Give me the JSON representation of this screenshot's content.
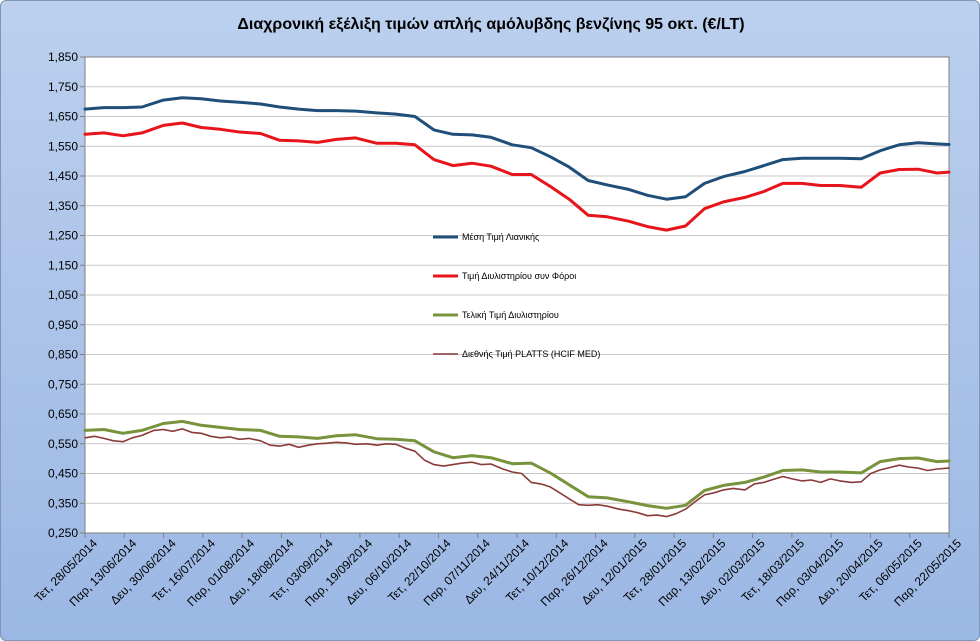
{
  "chart_data": {
    "type": "line",
    "title": "Διαχρονική εξέλιξη τιμών απλής αμόλυβδης βενζίνης 95 οκτ. (€/LT)",
    "ylim": [
      0.25,
      1.85
    ],
    "yticks": [
      "0,250",
      "0,350",
      "0,450",
      "0,550",
      "0,650",
      "0,750",
      "0,850",
      "0,950",
      "1,050",
      "1,150",
      "1,250",
      "1,350",
      "1,450",
      "1,550",
      "1,650",
      "1,750",
      "1,850"
    ],
    "grid": true,
    "legend_placement": "center",
    "x_ticks": [
      "Τετ, 28/05/2014",
      "Παρ, 13/06/2014",
      "Δευ, 30/06/2014",
      "Τετ, 16/07/2014",
      "Παρ, 01/08/2014",
      "Δευ, 18/08/2014",
      "Τετ, 03/09/2014",
      "Παρ, 19/09/2014",
      "Δευ, 06/10/2014",
      "Τετ, 22/10/2014",
      "Παρ, 07/11/2014",
      "Δευ, 24/11/2014",
      "Τετ, 10/12/2014",
      "Παρ, 26/12/2014",
      "Δευ, 12/01/2015",
      "Τετ, 28/01/2015",
      "Παρ, 13/02/2015",
      "Δευ, 02/03/2015",
      "Τετ, 18/03/2015",
      "Παρ, 03/04/2015",
      "Δευ, 20/04/2015",
      "Τετ, 06/05/2015",
      "Παρ, 22/05/2015"
    ],
    "x_domain": [
      "28/05/2014",
      "27/05/2015"
    ],
    "series": [
      {
        "name": "Μέση Τιμή Λιανικής",
        "color": "#1f4e79",
        "width": 3,
        "points": [
          [
            "28/05/2014",
            1.675
          ],
          [
            "05/06/2014",
            1.68
          ],
          [
            "13/06/2014",
            1.68
          ],
          [
            "21/06/2014",
            1.682
          ],
          [
            "30/06/2014",
            1.705
          ],
          [
            "08/07/2014",
            1.713
          ],
          [
            "16/07/2014",
            1.71
          ],
          [
            "24/07/2014",
            1.702
          ],
          [
            "01/08/2014",
            1.698
          ],
          [
            "10/08/2014",
            1.692
          ],
          [
            "18/08/2014",
            1.682
          ],
          [
            "26/08/2014",
            1.675
          ],
          [
            "03/09/2014",
            1.67
          ],
          [
            "11/09/2014",
            1.67
          ],
          [
            "19/09/2014",
            1.668
          ],
          [
            "28/09/2014",
            1.662
          ],
          [
            "06/10/2014",
            1.658
          ],
          [
            "14/10/2014",
            1.65
          ],
          [
            "22/10/2014",
            1.605
          ],
          [
            "30/10/2014",
            1.59
          ],
          [
            "07/11/2014",
            1.588
          ],
          [
            "15/11/2014",
            1.58
          ],
          [
            "24/11/2014",
            1.555
          ],
          [
            "02/12/2014",
            1.545
          ],
          [
            "10/12/2014",
            1.515
          ],
          [
            "18/12/2014",
            1.48
          ],
          [
            "26/12/2014",
            1.435
          ],
          [
            "03/01/2015",
            1.42
          ],
          [
            "12/01/2015",
            1.405
          ],
          [
            "20/01/2015",
            1.385
          ],
          [
            "28/01/2015",
            1.372
          ],
          [
            "05/02/2015",
            1.38
          ],
          [
            "13/02/2015",
            1.425
          ],
          [
            "21/02/2015",
            1.448
          ],
          [
            "02/03/2015",
            1.465
          ],
          [
            "10/03/2015",
            1.485
          ],
          [
            "18/03/2015",
            1.505
          ],
          [
            "26/03/2015",
            1.51
          ],
          [
            "03/04/2015",
            1.51
          ],
          [
            "11/04/2015",
            1.51
          ],
          [
            "20/04/2015",
            1.508
          ],
          [
            "28/04/2015",
            1.535
          ],
          [
            "06/05/2015",
            1.555
          ],
          [
            "14/05/2015",
            1.562
          ],
          [
            "22/05/2015",
            1.558
          ],
          [
            "27/05/2015",
            1.556
          ]
        ]
      },
      {
        "name": "Τιμή Διυλιστηρίου συν Φόροι",
        "color": "#e8141b",
        "width": 3,
        "points": [
          [
            "28/05/2014",
            1.59
          ],
          [
            "05/06/2014",
            1.595
          ],
          [
            "13/06/2014",
            1.585
          ],
          [
            "21/06/2014",
            1.595
          ],
          [
            "30/06/2014",
            1.62
          ],
          [
            "08/07/2014",
            1.628
          ],
          [
            "16/07/2014",
            1.613
          ],
          [
            "24/07/2014",
            1.607
          ],
          [
            "01/08/2014",
            1.598
          ],
          [
            "10/08/2014",
            1.593
          ],
          [
            "18/08/2014",
            1.57
          ],
          [
            "26/08/2014",
            1.568
          ],
          [
            "03/09/2014",
            1.563
          ],
          [
            "11/09/2014",
            1.573
          ],
          [
            "19/09/2014",
            1.578
          ],
          [
            "28/09/2014",
            1.56
          ],
          [
            "06/10/2014",
            1.56
          ],
          [
            "14/10/2014",
            1.555
          ],
          [
            "22/10/2014",
            1.505
          ],
          [
            "30/10/2014",
            1.485
          ],
          [
            "07/11/2014",
            1.493
          ],
          [
            "15/11/2014",
            1.483
          ],
          [
            "24/11/2014",
            1.455
          ],
          [
            "02/12/2014",
            1.455
          ],
          [
            "10/12/2014",
            1.415
          ],
          [
            "18/12/2014",
            1.372
          ],
          [
            "26/12/2014",
            1.318
          ],
          [
            "03/01/2015",
            1.313
          ],
          [
            "12/01/2015",
            1.298
          ],
          [
            "20/01/2015",
            1.28
          ],
          [
            "28/01/2015",
            1.268
          ],
          [
            "05/02/2015",
            1.282
          ],
          [
            "13/02/2015",
            1.34
          ],
          [
            "21/02/2015",
            1.363
          ],
          [
            "02/03/2015",
            1.378
          ],
          [
            "10/03/2015",
            1.398
          ],
          [
            "18/03/2015",
            1.425
          ],
          [
            "26/03/2015",
            1.425
          ],
          [
            "03/04/2015",
            1.418
          ],
          [
            "11/04/2015",
            1.418
          ],
          [
            "20/04/2015",
            1.412
          ],
          [
            "28/04/2015",
            1.46
          ],
          [
            "06/05/2015",
            1.472
          ],
          [
            "14/05/2015",
            1.473
          ],
          [
            "22/05/2015",
            1.46
          ],
          [
            "27/05/2015",
            1.463
          ]
        ]
      },
      {
        "name": "Τελική Τιμή Διυλιστηρίου",
        "color": "#77933c",
        "width": 3,
        "points": [
          [
            "28/05/2014",
            0.595
          ],
          [
            "05/06/2014",
            0.598
          ],
          [
            "13/06/2014",
            0.585
          ],
          [
            "21/06/2014",
            0.595
          ],
          [
            "30/06/2014",
            0.618
          ],
          [
            "08/07/2014",
            0.625
          ],
          [
            "16/07/2014",
            0.612
          ],
          [
            "24/07/2014",
            0.605
          ],
          [
            "01/08/2014",
            0.598
          ],
          [
            "10/08/2014",
            0.595
          ],
          [
            "18/08/2014",
            0.575
          ],
          [
            "26/08/2014",
            0.573
          ],
          [
            "03/09/2014",
            0.568
          ],
          [
            "11/09/2014",
            0.577
          ],
          [
            "19/09/2014",
            0.58
          ],
          [
            "28/09/2014",
            0.567
          ],
          [
            "06/10/2014",
            0.565
          ],
          [
            "14/10/2014",
            0.56
          ],
          [
            "22/10/2014",
            0.523
          ],
          [
            "30/10/2014",
            0.503
          ],
          [
            "07/11/2014",
            0.51
          ],
          [
            "15/11/2014",
            0.503
          ],
          [
            "24/11/2014",
            0.483
          ],
          [
            "02/12/2014",
            0.485
          ],
          [
            "10/12/2014",
            0.452
          ],
          [
            "18/12/2014",
            0.412
          ],
          [
            "26/12/2014",
            0.372
          ],
          [
            "03/01/2015",
            0.368
          ],
          [
            "12/01/2015",
            0.355
          ],
          [
            "20/01/2015",
            0.342
          ],
          [
            "28/01/2015",
            0.333
          ],
          [
            "05/02/2015",
            0.343
          ],
          [
            "13/02/2015",
            0.393
          ],
          [
            "21/02/2015",
            0.41
          ],
          [
            "02/03/2015",
            0.42
          ],
          [
            "10/03/2015",
            0.438
          ],
          [
            "18/03/2015",
            0.46
          ],
          [
            "26/03/2015",
            0.462
          ],
          [
            "03/04/2015",
            0.455
          ],
          [
            "11/04/2015",
            0.455
          ],
          [
            "20/04/2015",
            0.452
          ],
          [
            "28/04/2015",
            0.49
          ],
          [
            "06/05/2015",
            0.5
          ],
          [
            "14/05/2015",
            0.502
          ],
          [
            "22/05/2015",
            0.49
          ],
          [
            "27/05/2015",
            0.492
          ]
        ]
      },
      {
        "name": "Διεθνής Τιμή  PLATTS (HCIF MED)",
        "color": "#8b3a3a",
        "width": 1.6,
        "points": [
          [
            "28/05/2014",
            0.57
          ],
          [
            "01/06/2014",
            0.575
          ],
          [
            "05/06/2014",
            0.568
          ],
          [
            "09/06/2014",
            0.56
          ],
          [
            "13/06/2014",
            0.557
          ],
          [
            "17/06/2014",
            0.57
          ],
          [
            "21/06/2014",
            0.578
          ],
          [
            "26/06/2014",
            0.595
          ],
          [
            "30/06/2014",
            0.598
          ],
          [
            "04/07/2014",
            0.592
          ],
          [
            "08/07/2014",
            0.6
          ],
          [
            "12/07/2014",
            0.588
          ],
          [
            "16/07/2014",
            0.585
          ],
          [
            "20/07/2014",
            0.575
          ],
          [
            "24/07/2014",
            0.57
          ],
          [
            "28/07/2014",
            0.573
          ],
          [
            "01/08/2014",
            0.565
          ],
          [
            "05/08/2014",
            0.568
          ],
          [
            "10/08/2014",
            0.56
          ],
          [
            "14/08/2014",
            0.545
          ],
          [
            "18/08/2014",
            0.542
          ],
          [
            "22/08/2014",
            0.548
          ],
          [
            "26/08/2014",
            0.538
          ],
          [
            "30/08/2014",
            0.545
          ],
          [
            "03/09/2014",
            0.55
          ],
          [
            "07/09/2014",
            0.552
          ],
          [
            "11/09/2014",
            0.555
          ],
          [
            "15/09/2014",
            0.553
          ],
          [
            "19/09/2014",
            0.548
          ],
          [
            "24/09/2014",
            0.55
          ],
          [
            "28/09/2014",
            0.545
          ],
          [
            "02/10/2014",
            0.55
          ],
          [
            "06/10/2014",
            0.548
          ],
          [
            "10/10/2014",
            0.535
          ],
          [
            "14/10/2014",
            0.525
          ],
          [
            "18/10/2014",
            0.495
          ],
          [
            "22/10/2014",
            0.48
          ],
          [
            "26/10/2014",
            0.475
          ],
          [
            "30/10/2014",
            0.48
          ],
          [
            "03/11/2014",
            0.485
          ],
          [
            "07/11/2014",
            0.488
          ],
          [
            "11/11/2014",
            0.48
          ],
          [
            "15/11/2014",
            0.482
          ],
          [
            "20/11/2014",
            0.465
          ],
          [
            "24/11/2014",
            0.455
          ],
          [
            "28/11/2014",
            0.45
          ],
          [
            "02/12/2014",
            0.42
          ],
          [
            "06/12/2014",
            0.415
          ],
          [
            "10/12/2014",
            0.405
          ],
          [
            "14/12/2014",
            0.385
          ],
          [
            "18/12/2014",
            0.365
          ],
          [
            "22/12/2014",
            0.345
          ],
          [
            "26/12/2014",
            0.343
          ],
          [
            "30/12/2014",
            0.345
          ],
          [
            "03/01/2015",
            0.34
          ],
          [
            "08/01/2015",
            0.33
          ],
          [
            "12/01/2015",
            0.325
          ],
          [
            "16/01/2015",
            0.318
          ],
          [
            "20/01/2015",
            0.308
          ],
          [
            "24/01/2015",
            0.31
          ],
          [
            "28/01/2015",
            0.305
          ],
          [
            "01/02/2015",
            0.315
          ],
          [
            "05/02/2015",
            0.33
          ],
          [
            "09/02/2015",
            0.355
          ],
          [
            "13/02/2015",
            0.378
          ],
          [
            "17/02/2015",
            0.385
          ],
          [
            "21/02/2015",
            0.395
          ],
          [
            "25/02/2015",
            0.4
          ],
          [
            "02/03/2015",
            0.395
          ],
          [
            "06/03/2015",
            0.415
          ],
          [
            "10/03/2015",
            0.42
          ],
          [
            "14/03/2015",
            0.43
          ],
          [
            "18/03/2015",
            0.44
          ],
          [
            "22/03/2015",
            0.432
          ],
          [
            "26/03/2015",
            0.425
          ],
          [
            "30/03/2015",
            0.428
          ],
          [
            "03/04/2015",
            0.42
          ],
          [
            "07/04/2015",
            0.432
          ],
          [
            "11/04/2015",
            0.425
          ],
          [
            "16/04/2015",
            0.42
          ],
          [
            "20/04/2015",
            0.422
          ],
          [
            "24/04/2015",
            0.45
          ],
          [
            "28/04/2015",
            0.462
          ],
          [
            "02/05/2015",
            0.47
          ],
          [
            "06/05/2015",
            0.478
          ],
          [
            "10/05/2015",
            0.472
          ],
          [
            "14/05/2015",
            0.468
          ],
          [
            "18/05/2015",
            0.46
          ],
          [
            "22/05/2015",
            0.465
          ],
          [
            "27/05/2015",
            0.468
          ]
        ]
      }
    ]
  }
}
